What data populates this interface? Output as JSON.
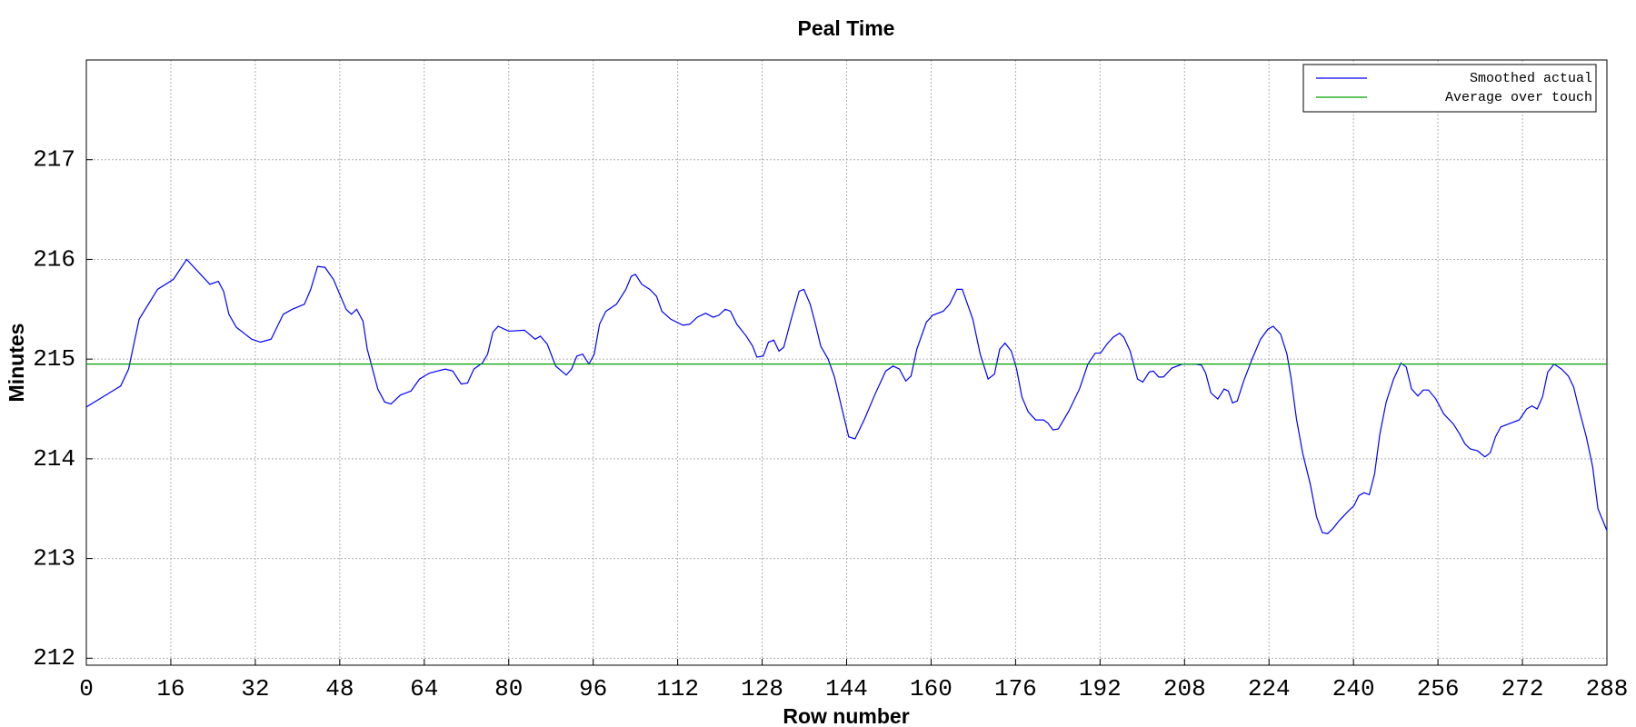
{
  "chart_data": {
    "type": "line",
    "title": "Peal Time",
    "xlabel": "Row number",
    "ylabel": "Minutes",
    "xlim": [
      0,
      288
    ],
    "ylim": [
      211.93,
      218
    ],
    "xticks": [
      0,
      16,
      32,
      48,
      64,
      80,
      96,
      112,
      128,
      144,
      160,
      176,
      192,
      208,
      224,
      240,
      256,
      272,
      288
    ],
    "yticks": [
      212,
      213,
      214,
      215,
      216,
      217
    ],
    "grid": true,
    "legend": "upper right",
    "series": [
      {
        "name": "Smoothed actual",
        "color": "#0000ff",
        "x": [
          0,
          6.5,
          8,
          10,
          13.5,
          16.5,
          19,
          23.4,
          25,
          26,
          27,
          28.4,
          31.3,
          33,
          35,
          37.3,
          39,
          41.3,
          42.5,
          43.8,
          45.2,
          46.8,
          49.2,
          50.2,
          51.2,
          52.4,
          53.2,
          55.2,
          56.5,
          57.7,
          59.5,
          61.5,
          63.1,
          65,
          68,
          69.4,
          71,
          72.2,
          73.4,
          75,
          76,
          77,
          78,
          80,
          83,
          85,
          86,
          87.3,
          88.9,
          90.9,
          91.9,
          92.9,
          94,
          95.2,
          96.2,
          97.2,
          98.4,
          100.4,
          102.2,
          103.2,
          104,
          105.2,
          106.7,
          108,
          109,
          110.7,
          113,
          114.3,
          115.7,
          117.3,
          118.7,
          119.8,
          121,
          122,
          123.2,
          125,
          126.2,
          127,
          128.2,
          129.2,
          130.2,
          131.2,
          132.1,
          133.5,
          135,
          135.9,
          137.1,
          138.1,
          139.1,
          140.5,
          141.7,
          142.9,
          144.4,
          145.6,
          147.4,
          149.4,
          151.4,
          152.8,
          154,
          155.2,
          156.2,
          157.3,
          159.1,
          160.3,
          162.3,
          163.5,
          164.9,
          165.9,
          167.9,
          169.3,
          170.8,
          172,
          173,
          174,
          175.2,
          176.2,
          177.2,
          178.4,
          179.8,
          181.3,
          182.1,
          183.1,
          184.1,
          186.1,
          188.1,
          189.7,
          191.1,
          192.1,
          193.3,
          194.5,
          195.7,
          196.5,
          197.7,
          199.1,
          200.1,
          201.3,
          202.1,
          203.1,
          204,
          205.6,
          207.6,
          210,
          211.2,
          212,
          213,
          214.3,
          215.5,
          216.3,
          217.1,
          218,
          219.2,
          220.8,
          222.4,
          223.8,
          224.8,
          226.2,
          227.4,
          228.2,
          229.2,
          230.4,
          231.8,
          233,
          234.1,
          235.1,
          236.1,
          237.3,
          239.1,
          240.1,
          241,
          242,
          243,
          244,
          245,
          246.2,
          247.6,
          249,
          250,
          251,
          252.2,
          253.2,
          254.2,
          255.6,
          257.1,
          258.9,
          260.1,
          261.1,
          262.1,
          263.5,
          264.9,
          265.9,
          266.9,
          267.9,
          269.4,
          271.4,
          272.8,
          273.8,
          274.8,
          275.8,
          276.8,
          278,
          279.4,
          280.7,
          281.7,
          282.7,
          284.1,
          285.3,
          286.3,
          288
        ],
        "values": [
          214.52,
          214.73,
          214.9,
          215.4,
          215.7,
          215.8,
          216.0,
          215.75,
          215.78,
          215.68,
          215.45,
          215.32,
          215.2,
          215.17,
          215.2,
          215.45,
          215.5,
          215.55,
          215.7,
          215.93,
          215.92,
          215.8,
          215.5,
          215.45,
          215.5,
          215.38,
          215.1,
          214.7,
          214.57,
          214.55,
          214.64,
          214.68,
          214.8,
          214.86,
          214.9,
          214.88,
          214.75,
          214.76,
          214.9,
          214.96,
          215.05,
          215.27,
          215.33,
          215.28,
          215.29,
          215.2,
          215.23,
          215.15,
          214.93,
          214.84,
          214.9,
          215.03,
          215.05,
          214.95,
          215.05,
          215.35,
          215.48,
          215.55,
          215.7,
          215.83,
          215.85,
          215.75,
          215.7,
          215.63,
          215.48,
          215.4,
          215.34,
          215.35,
          215.42,
          215.46,
          215.42,
          215.44,
          215.5,
          215.48,
          215.35,
          215.23,
          215.13,
          215.02,
          215.03,
          215.17,
          215.19,
          215.08,
          215.12,
          215.4,
          215.68,
          215.7,
          215.55,
          215.35,
          215.13,
          215.0,
          214.82,
          214.55,
          214.22,
          214.2,
          214.4,
          214.65,
          214.88,
          214.93,
          214.9,
          214.78,
          214.83,
          215.1,
          215.37,
          215.44,
          215.48,
          215.55,
          215.7,
          215.7,
          215.4,
          215.05,
          214.8,
          214.85,
          215.1,
          215.16,
          215.08,
          214.9,
          214.62,
          214.47,
          214.39,
          214.39,
          214.36,
          214.29,
          214.3,
          214.48,
          214.7,
          214.95,
          215.06,
          215.06,
          215.15,
          215.22,
          215.26,
          215.22,
          215.08,
          214.8,
          214.77,
          214.87,
          214.88,
          214.82,
          214.82,
          214.91,
          214.95,
          214.95,
          214.94,
          214.86,
          214.66,
          214.6,
          214.7,
          214.68,
          214.56,
          214.58,
          214.78,
          215.0,
          215.2,
          215.3,
          215.33,
          215.25,
          215.05,
          214.8,
          214.4,
          214.05,
          213.75,
          213.42,
          213.26,
          213.25,
          213.3,
          213.38,
          213.48,
          213.53,
          213.63,
          213.66,
          213.64,
          213.85,
          214.25,
          214.57,
          214.8,
          214.96,
          214.92,
          214.7,
          214.63,
          214.69,
          214.69,
          214.6,
          214.45,
          214.35,
          214.25,
          214.15,
          214.1,
          214.08,
          214.02,
          214.06,
          214.22,
          214.32,
          214.35,
          214.39,
          214.5,
          214.53,
          214.5,
          214.62,
          214.87,
          214.95,
          214.9,
          214.83,
          214.72,
          214.5,
          214.22,
          213.92,
          213.5,
          213.28
        ]
      },
      {
        "name": "Average over touch",
        "color": "#00a000",
        "x": [
          0,
          288
        ],
        "values": [
          214.95,
          214.95
        ]
      }
    ]
  }
}
